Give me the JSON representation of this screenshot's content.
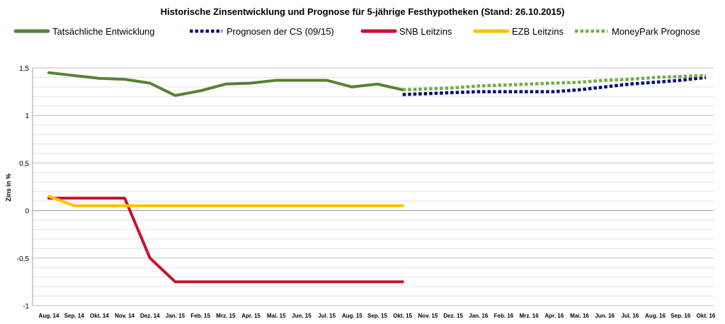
{
  "chart_data": {
    "type": "line",
    "title": "Historische Zinsentwicklung und Prognose für 5-jährige Festhypotheken (Stand: 26.10.2015)",
    "xlabel": "",
    "ylabel": "Zins in %",
    "ylim": [
      -1,
      1.5
    ],
    "yticks": [
      "1,5",
      "1",
      "0,5",
      "0",
      "-0,5",
      "-1"
    ],
    "ytick_values": [
      1.5,
      1,
      0.5,
      0,
      -0.5,
      -1
    ],
    "grid": true,
    "legend_position": "top",
    "categories": [
      "Aug. 14",
      "Sep. 14",
      "Okt. 14",
      "Nov. 14",
      "Dez. 14",
      "Jan. 15",
      "Feb. 15",
      "Mrz. 15",
      "Apr. 15",
      "Mai. 15",
      "Jun. 15",
      "Jul. 15",
      "Aug. 15",
      "Sep. 15",
      "Okt. 15",
      "Nov. 15",
      "Dez. 15",
      "Jan. 16",
      "Feb. 16",
      "Mrz. 16",
      "Apr. 16",
      "Mai. 16",
      "Jun. 16",
      "Jul. 16",
      "Aug. 16",
      "Sep. 16",
      "Okt. 16"
    ],
    "series": [
      {
        "name": "Tatsächliche Entwicklung",
        "color": "#548235",
        "style": "solid",
        "values": [
          1.45,
          1.42,
          1.39,
          1.38,
          1.34,
          1.21,
          1.26,
          1.33,
          1.34,
          1.37,
          1.37,
          1.37,
          1.3,
          1.33,
          1.27,
          null,
          null,
          null,
          null,
          null,
          null,
          null,
          null,
          null,
          null,
          null,
          null
        ]
      },
      {
        "name": "Prognosen der CS (09/15)",
        "color": "#00007f",
        "style": "dotted",
        "values": [
          null,
          null,
          null,
          null,
          null,
          null,
          null,
          null,
          null,
          null,
          null,
          null,
          null,
          null,
          1.22,
          1.23,
          1.24,
          1.25,
          1.25,
          1.25,
          1.25,
          1.27,
          1.3,
          1.33,
          1.35,
          1.37,
          1.4
        ]
      },
      {
        "name": "SNB Leitzins",
        "color": "#c8102e",
        "style": "solid",
        "values": [
          0.13,
          0.13,
          0.13,
          0.13,
          -0.5,
          -0.75,
          -0.75,
          -0.75,
          -0.75,
          -0.75,
          -0.75,
          -0.75,
          -0.75,
          -0.75,
          -0.75,
          null,
          null,
          null,
          null,
          null,
          null,
          null,
          null,
          null,
          null,
          null,
          null
        ]
      },
      {
        "name": "EZB Leitzins",
        "color": "#ffc000",
        "style": "solid",
        "values": [
          0.15,
          0.05,
          0.05,
          0.05,
          0.05,
          0.05,
          0.05,
          0.05,
          0.05,
          0.05,
          0.05,
          0.05,
          0.05,
          0.05,
          0.05,
          null,
          null,
          null,
          null,
          null,
          null,
          null,
          null,
          null,
          null,
          null,
          null
        ]
      },
      {
        "name": "MoneyPark Prognose",
        "color": "#70ad47",
        "style": "dotted",
        "values": [
          null,
          null,
          null,
          null,
          null,
          null,
          null,
          null,
          null,
          null,
          null,
          null,
          null,
          null,
          1.27,
          1.28,
          1.29,
          1.31,
          1.32,
          1.33,
          1.34,
          1.35,
          1.37,
          1.38,
          1.4,
          1.41,
          1.42
        ]
      }
    ]
  }
}
